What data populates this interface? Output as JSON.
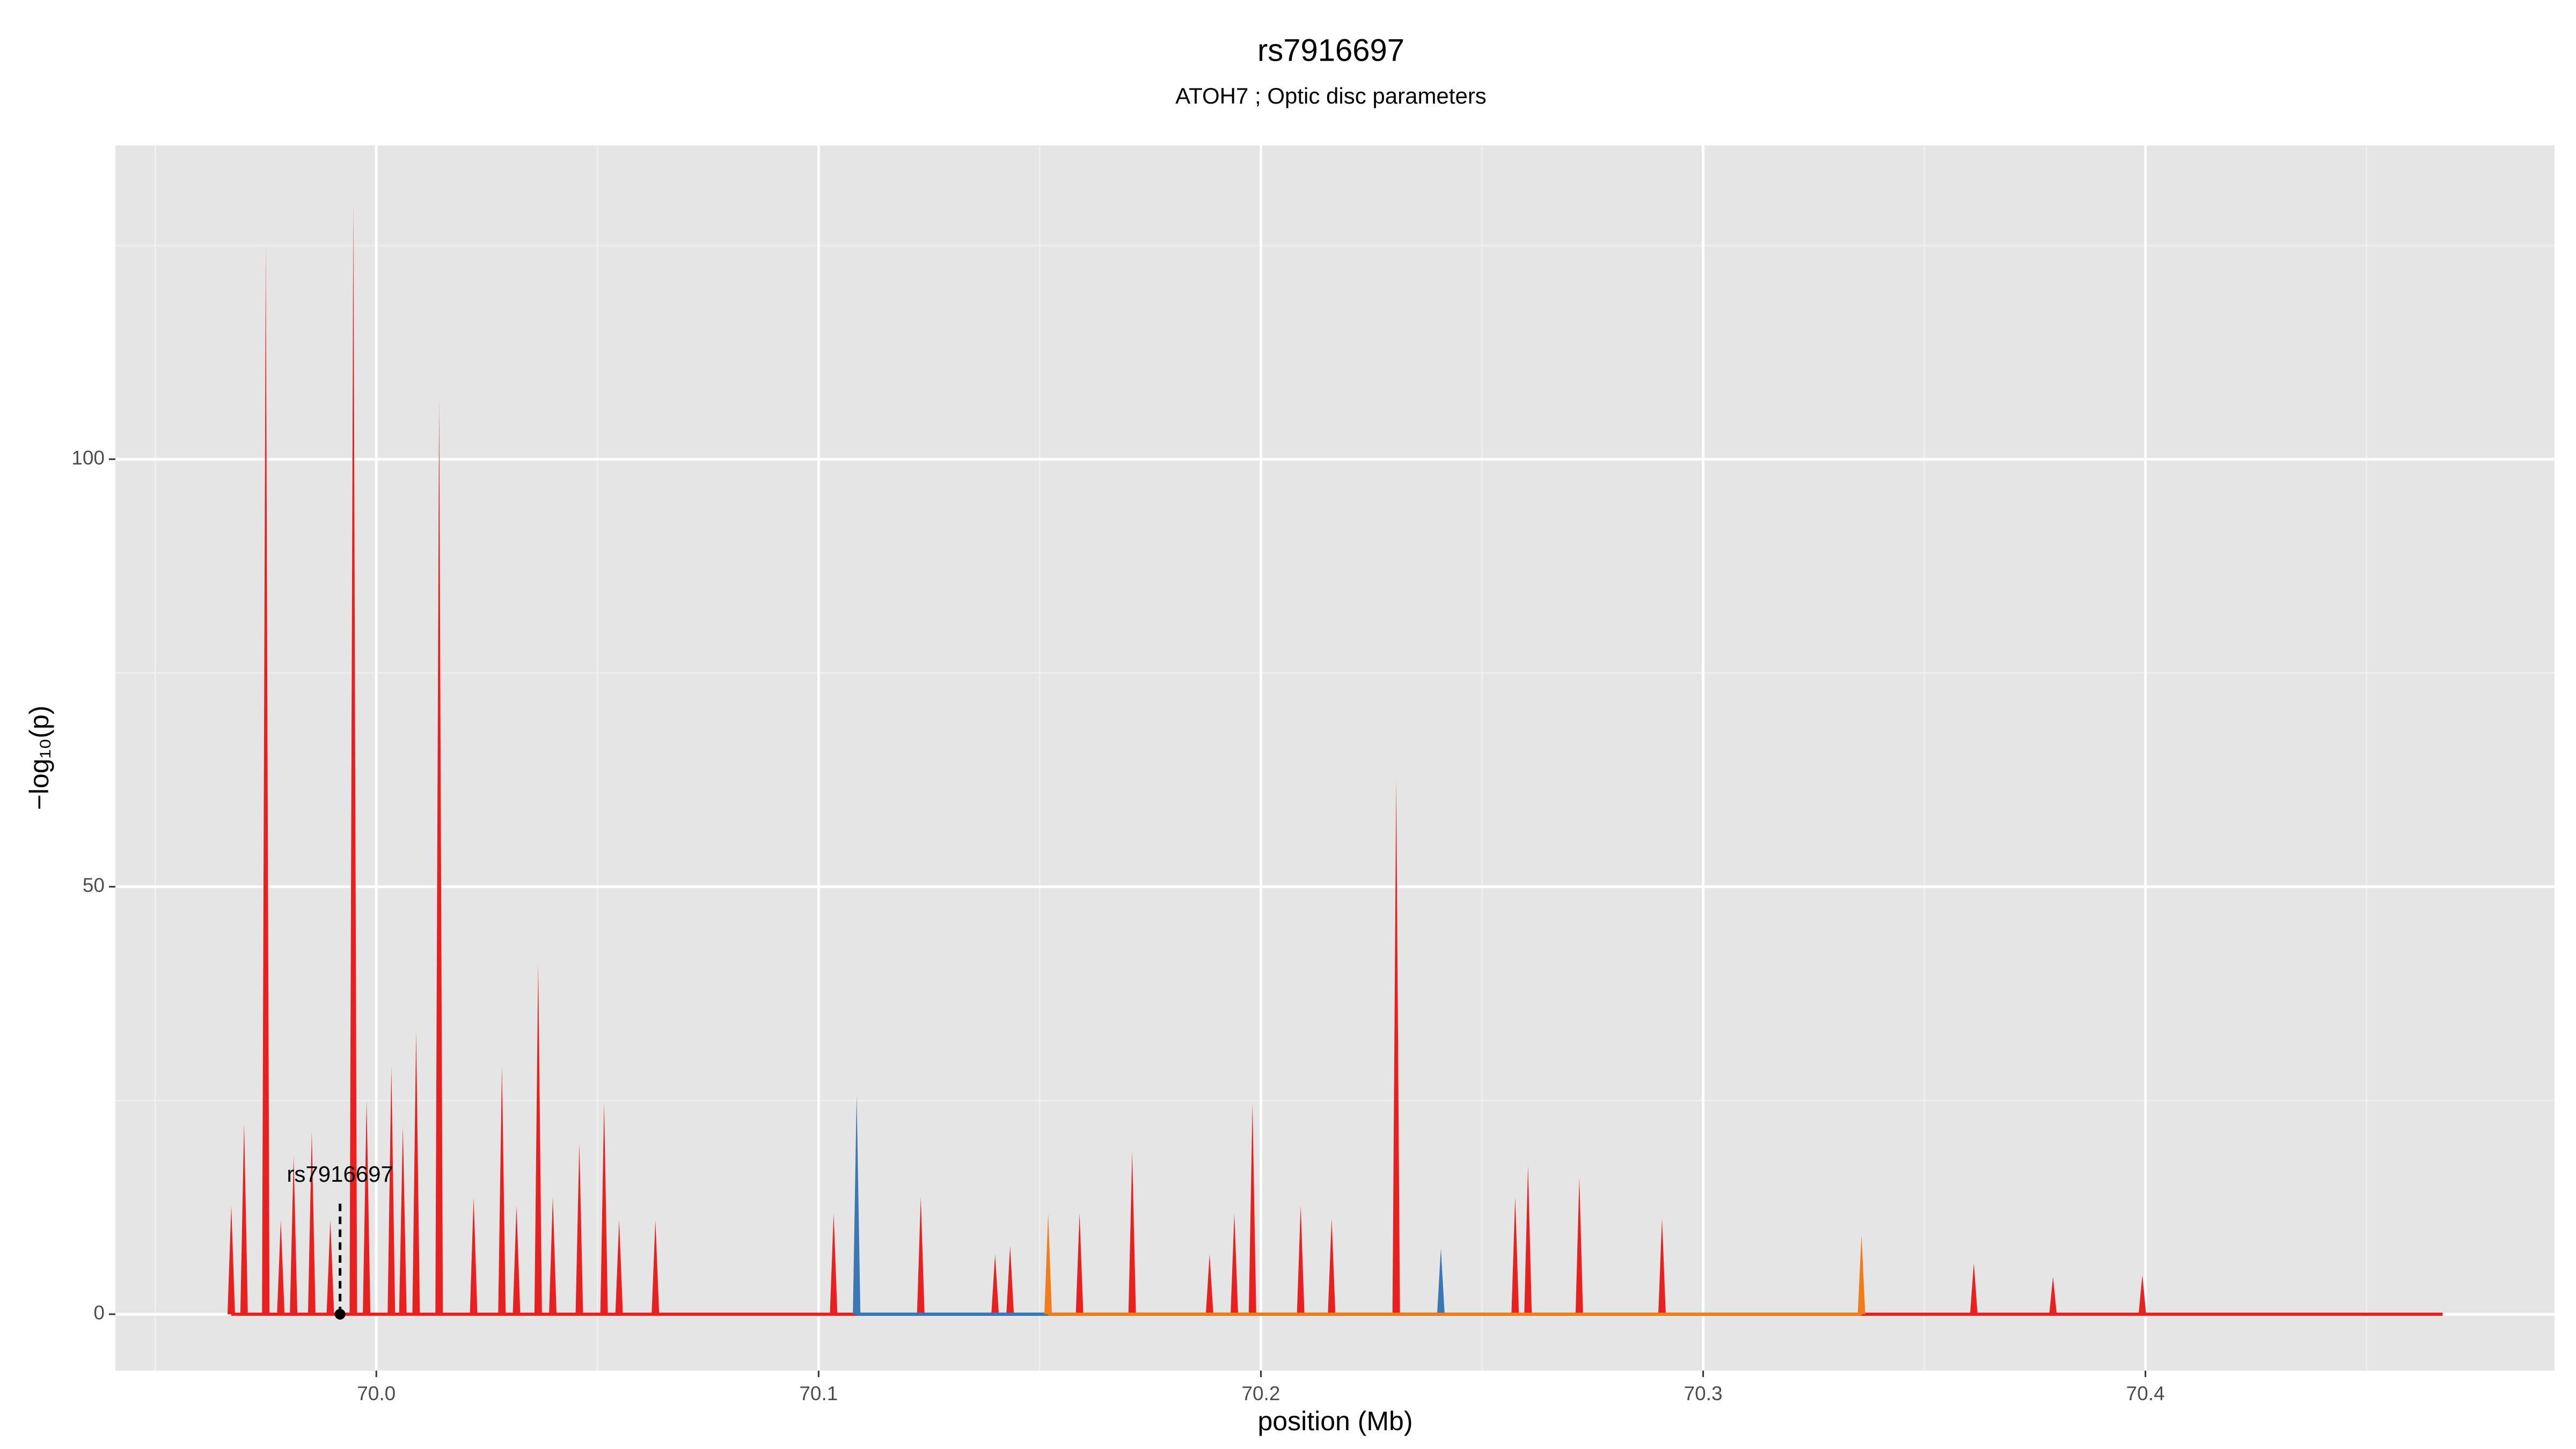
{
  "chart_data": {
    "type": "area",
    "title": "rs7916697",
    "subtitle": "ATOH7 ; Optic disc parameters",
    "x_label": "position (Mb)",
    "y_label": "−log₁₀(p)",
    "xlim": [
      69.941,
      70.4925
    ],
    "ylim": [
      -6.6,
      136.7
    ],
    "xticks": [
      {
        "value": 70,
        "label": "70.0"
      },
      70.1,
      70.2,
      70.3,
      70.4
    ],
    "yticks": [
      0,
      50,
      100
    ],
    "xminor": [
      69.95,
      70.05,
      70.15,
      70.25,
      70.35,
      70.45
    ],
    "yminor": [
      25,
      75,
      125
    ],
    "grid": true,
    "series": [
      {
        "color": "#e8201f",
        "x": [
          69.9672,
          69.9672,
          69.9701,
          69.975,
          69.9784,
          69.9813,
          69.9854,
          69.9896,
          69.9948,
          69.9978,
          70.0034,
          70.006,
          70.009,
          70.0142,
          70.022,
          70.0284,
          70.0317,
          70.0366,
          70.0399,
          70.0459,
          70.0515,
          70.0549,
          70.0631,
          70.1034,
          70.1231,
          70.1399,
          70.1433,
          70.159,
          70.1709,
          70.1884,
          70.194,
          70.1981,
          70.209,
          70.216,
          70.2306,
          70.2575,
          70.2604,
          70.272,
          70.2907,
          70.3612,
          70.3791,
          70.3993,
          70.4672
        ],
        "values": [
          0,
          12.7,
          22.4,
          125,
          11,
          18.5,
          21.4,
          11,
          130,
          25,
          29,
          22,
          33,
          107,
          13.7,
          29,
          12.7,
          41,
          13.7,
          20,
          24.7,
          11,
          11,
          11.8,
          13.7,
          7,
          8,
          11.8,
          19,
          7,
          11.8,
          24.7,
          12.7,
          11.2,
          62.5,
          13.7,
          17.4,
          16,
          11.2,
          6,
          4.4,
          4.6,
          0
        ]
      },
      {
        "color": "#3a78b5",
        "x": [
          70.1086,
          70.2407
        ],
        "values": [
          25.7,
          7.7
        ]
      },
      {
        "color": "#f07c1a",
        "x": [
          70.1519,
          70.3358
        ],
        "values": [
          11.8,
          9.3
        ]
      }
    ],
    "annotations": [
      {
        "label": "rs7916697",
        "x": 69.9918,
        "y": 0
      }
    ]
  }
}
